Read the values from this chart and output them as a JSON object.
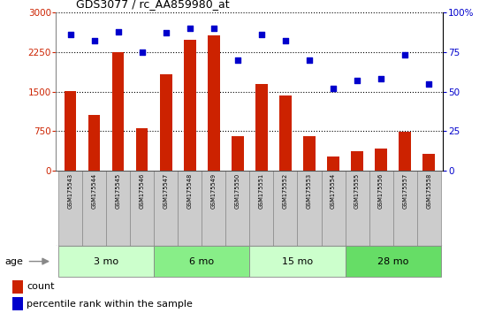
{
  "title": "GDS3077 / rc_AA859980_at",
  "samples": [
    "GSM175543",
    "GSM175544",
    "GSM175545",
    "GSM175546",
    "GSM175547",
    "GSM175548",
    "GSM175549",
    "GSM175550",
    "GSM175551",
    "GSM175552",
    "GSM175553",
    "GSM175554",
    "GSM175555",
    "GSM175556",
    "GSM175557",
    "GSM175558"
  ],
  "counts": [
    1510,
    1050,
    2240,
    800,
    1820,
    2480,
    2560,
    650,
    1640,
    1430,
    660,
    270,
    370,
    420,
    730,
    310
  ],
  "percentiles": [
    86,
    82,
    88,
    75,
    87,
    90,
    90,
    70,
    86,
    82,
    70,
    52,
    57,
    58,
    73,
    55
  ],
  "groups": [
    {
      "label": "3 mo",
      "start": 0,
      "end": 3
    },
    {
      "label": "6 mo",
      "start": 4,
      "end": 7
    },
    {
      "label": "15 mo",
      "start": 8,
      "end": 11
    },
    {
      "label": "28 mo",
      "start": 12,
      "end": 15
    }
  ],
  "group_colors": [
    "#ccffcc",
    "#88ee88",
    "#ccffcc",
    "#66dd66"
  ],
  "bar_color": "#cc2200",
  "dot_color": "#0000cc",
  "ylim_left": [
    0,
    3000
  ],
  "ylim_right": [
    0,
    100
  ],
  "yticks_left": [
    0,
    750,
    1500,
    2250,
    3000
  ],
  "yticks_right": [
    0,
    25,
    50,
    75,
    100
  ],
  "age_label": "age",
  "legend_count_label": "count",
  "legend_pct_label": "percentile rank within the sample",
  "sample_box_color": "#cccccc",
  "sample_box_edge": "#888888"
}
